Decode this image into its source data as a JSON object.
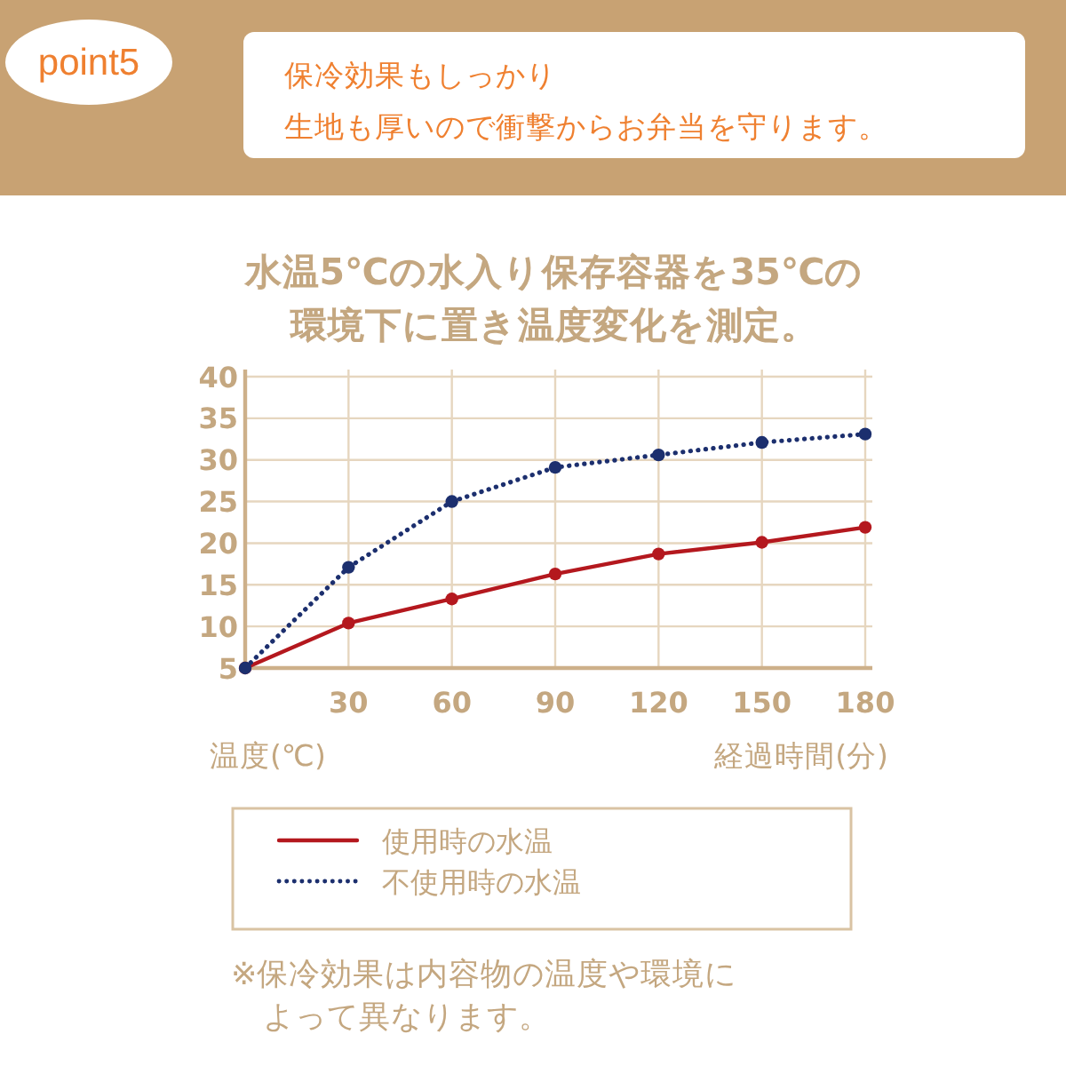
{
  "chart_data": {
    "type": "line",
    "title": "水温5℃の水入り保存容器を35℃の環境下に置き温度変化を測定。",
    "xlabel": "経過時間(分)",
    "ylabel": "温度(℃)",
    "annotations": [
      "point5",
      "保冷効果もしっかり",
      "生地も厚いので衝撃からお弁当を守ります。",
      "※保冷効果は内容物の温度や環境によって異なります。"
    ],
    "x": [
      0,
      30,
      60,
      90,
      120,
      150,
      180
    ],
    "series": [
      {
        "name": "使用時の水温",
        "color": "#b4181e",
        "line_style": "solid",
        "values": [
          5,
          10.4,
          13.3,
          16.3,
          18.7,
          20.1,
          21.9
        ]
      },
      {
        "name": "不使用時の水温",
        "color": "#1c2f6e",
        "line_style": "dotted",
        "values": [
          5,
          17.1,
          25,
          29.1,
          30.6,
          32.1,
          33.1
        ]
      }
    ],
    "xlim": [
      0,
      180
    ],
    "ylim": [
      5,
      40
    ],
    "xticks": [
      30,
      60,
      90,
      120,
      150,
      180
    ],
    "yticks": [
      5,
      10,
      15,
      20,
      25,
      30,
      35,
      40
    ],
    "grid": true,
    "legend": "bottom",
    "marker": "circle"
  }
}
